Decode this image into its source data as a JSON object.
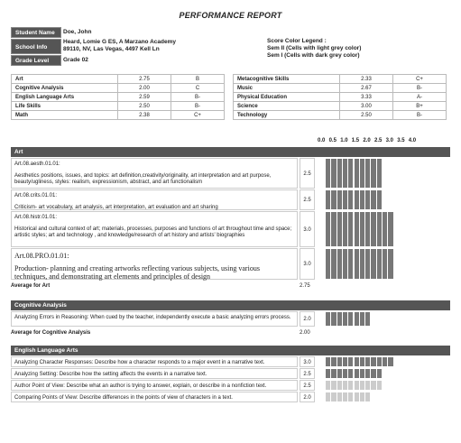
{
  "title": "PERFORMANCE REPORT",
  "student": {
    "name_label": "Student Name",
    "name": "Doe, John",
    "school_label": "School Info",
    "school_line1": "Heard, Lomie G ES, A Marzano Academy",
    "school_line2": "89110, NV, Las Vegas, 4497 Kell Ln",
    "grade_label": "Grade Level",
    "grade": "Grade 02"
  },
  "legend": {
    "line1": "Score Color Legend :",
    "line2": "Sem II (Cells with light grey color)",
    "line3": "Sem I (Cells with dark grey color)"
  },
  "scores_left": [
    {
      "subject": "Art",
      "score": "2.75",
      "grade": "B"
    },
    {
      "subject": "Cognitive Analysis",
      "score": "2.00",
      "grade": "C"
    },
    {
      "subject": "English Language Arts",
      "score": "2.59",
      "grade": "B-"
    },
    {
      "subject": "Life Skills",
      "score": "2.50",
      "grade": "B-"
    },
    {
      "subject": "Math",
      "score": "2.38",
      "grade": "C+"
    }
  ],
  "scores_right": [
    {
      "subject": "Metacognitive Skills",
      "score": "2.33",
      "grade": "C+"
    },
    {
      "subject": "Music",
      "score": "2.67",
      "grade": "B-"
    },
    {
      "subject": "Physical Education",
      "score": "3.33",
      "grade": "A-"
    },
    {
      "subject": "Science",
      "score": "3.00",
      "grade": "B+"
    },
    {
      "subject": "Technology",
      "score": "2.50",
      "grade": "B-"
    }
  ],
  "axis_ticks": [
    "0.0",
    "0.5",
    "1.0",
    "1.5",
    "2.0",
    "2.5",
    "3.0",
    "3.5",
    "4.0"
  ],
  "colors": {
    "sem1": "#777777",
    "sem2": "#cccccc",
    "header": "#555555"
  },
  "sections": [
    {
      "name": "Art",
      "rows": [
        {
          "code": "Art.08.aesth.01.01:",
          "text": "Aesthetics positions, issues, and topics: art definition,creativity/originality, art interpretation and art purpose, beauty/ugliness, styles: realism, expressionism, abstract, and art functionalism",
          "score": "2.5",
          "value": 2.5,
          "sem": "sem1"
        },
        {
          "code": "Art.08.crits.01.01:",
          "text": "Criticism- art vocabulary, art analysis, art interpretation, art evaluation and art sharing",
          "score": "2.5",
          "value": 2.5,
          "sem": "sem1"
        },
        {
          "code": "Art.08.histr.01.01:",
          "text": "Historical and cultural context of art; materials, processes, purposes and functions of art throughout time and space; artistic styles; art and technology , and knowledge/research of art history and artists' biographies",
          "score": "3.0",
          "value": 3.0,
          "sem": "sem1"
        },
        {
          "code": "Art.08.PRO.01.01:",
          "text": "Production- planning and creating artworks reflecting various subjects, using various techniques, and demonstrating art elements and principles of design",
          "score": "3.0",
          "value": 3.0,
          "sem": "sem1",
          "serif": true
        }
      ],
      "avg_label": "Average for Art",
      "avg": "2.75"
    },
    {
      "name": "Cognitive Analysis",
      "rows": [
        {
          "code": "",
          "text": "Analyzing Errors in Reasoning: When cued by the teacher, independently execute a basic analyzing errors process.",
          "score": "2.0",
          "value": 2.0,
          "sem": "sem1"
        }
      ],
      "avg_label": "Average for Cognitive Analysis",
      "avg": "2.00"
    },
    {
      "name": "English Language Arts",
      "rows": [
        {
          "code": "",
          "text": "Analyzing Character Responses: Describe how a character responds to a major event in a narrative text.",
          "score": "3.0",
          "value": 3.0,
          "sem": "sem1"
        },
        {
          "code": "",
          "text": "Analyzing Setting: Describe how the setting affects the events in a narrative text.",
          "score": "2.5",
          "value": 2.5,
          "sem": "sem1"
        },
        {
          "code": "",
          "text": "Author Point of View: Describe what an author is trying to answer, explain, or describe in a nonfiction text.",
          "score": "2.5",
          "value": 2.5,
          "sem": "sem2"
        },
        {
          "code": "",
          "text": "Comparing Points of View: Describe differences in the points of view of characters in a text.",
          "score": "2.0",
          "value": 2.0,
          "sem": "sem2"
        }
      ]
    }
  ]
}
